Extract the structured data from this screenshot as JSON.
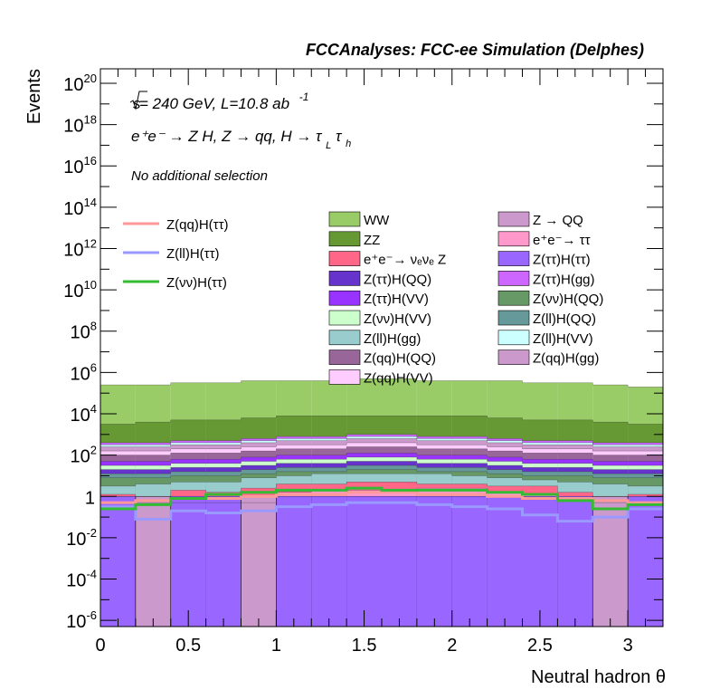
{
  "chart_data": {
    "type": "area",
    "title": "FCCAnalyses: FCC-ee Simulation (Delphes)",
    "xlabel": "Neutral hadron θ",
    "ylabel": "Events",
    "xlim": [
      0,
      3.2
    ],
    "ylog": true,
    "ylim_exp": [
      -6.3,
      20.7
    ],
    "x_ticks": [
      "0",
      "0.5",
      "1",
      "1.5",
      "2",
      "2.5",
      "3"
    ],
    "x_tick_values": [
      0,
      0.5,
      1,
      1.5,
      2,
      2.5,
      3
    ],
    "y_ticks": [
      {
        "base": "10",
        "exp": "20",
        "e": 20
      },
      {
        "base": "10",
        "exp": "18",
        "e": 18
      },
      {
        "base": "10",
        "exp": "16",
        "e": 16
      },
      {
        "base": "10",
        "exp": "14",
        "e": 14
      },
      {
        "base": "10",
        "exp": "12",
        "e": 12
      },
      {
        "base": "10",
        "exp": "10",
        "e": 10
      },
      {
        "base": "10",
        "exp": "8",
        "e": 8
      },
      {
        "base": "10",
        "exp": "6",
        "e": 6
      },
      {
        "base": "10",
        "exp": "4",
        "e": 4
      },
      {
        "base": "10",
        "exp": "2",
        "e": 2
      },
      {
        "base": "1",
        "exp": "",
        "e": 0
      },
      {
        "base": "10",
        "exp": "-2",
        "e": -2
      },
      {
        "base": "10",
        "exp": "-4",
        "e": -4
      },
      {
        "base": "10",
        "exp": "-6",
        "e": -6
      }
    ],
    "bin_edges": [
      0,
      0.2,
      0.4,
      0.6,
      0.8,
      1.0,
      1.2,
      1.4,
      1.6,
      1.8,
      2.0,
      2.2,
      2.4,
      2.6,
      2.8,
      3.0,
      3.2
    ],
    "stack_bottom_to_top": [
      {
        "name": "Z(ττ)H(ττ)",
        "color": "#9966ff",
        "log10": [
          0.0,
          0.0,
          0.0,
          0.0,
          0.0,
          0.0,
          0.0,
          0.0,
          0.0,
          0.0,
          0.0,
          0.0,
          0.0,
          0.0,
          0.0,
          0.0
        ]
      },
      {
        "name": "Z → QQ",
        "color": "#cc99cc",
        "log10": [
          0.0,
          -6.5,
          0.0,
          0.0,
          -6.5,
          0.0,
          0.0,
          0.0,
          0.0,
          0.0,
          0.0,
          0.0,
          0.0,
          0.0,
          -6.5,
          0.0
        ]
      },
      {
        "name": "e+e- → ττ",
        "color": "#ff99cc",
        "log10": [
          0.0,
          -0.3,
          -0.3,
          -0.3,
          -0.3,
          0.2,
          0.3,
          0.3,
          0.3,
          0.4,
          0.4,
          0.2,
          0.1,
          -0.1,
          -0.3,
          0.0
        ]
      },
      {
        "name": "e+e- → νeνe Z",
        "color": "#ff6688",
        "log10": [
          0.1,
          0.0,
          0.3,
          0.2,
          0.4,
          0.6,
          0.6,
          0.7,
          0.7,
          0.6,
          0.6,
          0.5,
          0.5,
          0.2,
          0.0,
          0.1
        ]
      },
      {
        "name": "Z(ll)H(gg)",
        "color": "#99cccc",
        "log10": [
          0.5,
          0.6,
          0.7,
          0.7,
          0.9,
          1.0,
          1.1,
          1.1,
          1.1,
          1.1,
          1.0,
          0.9,
          0.8,
          0.7,
          0.6,
          0.5
        ]
      },
      {
        "name": "Z(νν)H(QQ)",
        "color": "#669966",
        "log10": [
          0.9,
          0.9,
          1.0,
          1.0,
          1.1,
          1.2,
          1.2,
          1.3,
          1.3,
          1.2,
          1.2,
          1.1,
          1.0,
          1.0,
          0.9,
          0.9
        ]
      },
      {
        "name": "Z(ll)H(QQ)",
        "color": "#669999",
        "log10": [
          1.1,
          1.1,
          1.2,
          1.2,
          1.3,
          1.4,
          1.4,
          1.5,
          1.5,
          1.4,
          1.4,
          1.3,
          1.2,
          1.2,
          1.1,
          1.1
        ]
      },
      {
        "name": "Z(ττ)H(QQ)",
        "color": "#6633cc",
        "log10": [
          1.3,
          1.3,
          1.4,
          1.4,
          1.5,
          1.6,
          1.6,
          1.7,
          1.7,
          1.6,
          1.6,
          1.5,
          1.4,
          1.4,
          1.3,
          1.3
        ]
      },
      {
        "name": "Z(νν)H(VV)",
        "color": "#ccffcc",
        "log10": [
          1.5,
          1.5,
          1.6,
          1.6,
          1.7,
          1.8,
          1.8,
          1.9,
          1.9,
          1.8,
          1.8,
          1.7,
          1.6,
          1.6,
          1.5,
          1.5
        ]
      },
      {
        "name": "Z(ττ)H(VV)",
        "color": "#9933ff",
        "log10": [
          1.7,
          1.7,
          1.8,
          1.8,
          1.9,
          2.0,
          2.0,
          2.1,
          2.1,
          2.0,
          2.0,
          1.9,
          1.8,
          1.8,
          1.7,
          1.7
        ]
      },
      {
        "name": "Z(qq)H(QQ)",
        "color": "#996699",
        "log10": [
          2.0,
          2.0,
          2.1,
          2.1,
          2.2,
          2.3,
          2.3,
          2.4,
          2.4,
          2.3,
          2.3,
          2.2,
          2.1,
          2.1,
          2.0,
          2.0
        ]
      },
      {
        "name": "Z(qq)H(VV)",
        "color": "#ffccff",
        "log10": [
          2.2,
          2.2,
          2.3,
          2.3,
          2.4,
          2.5,
          2.5,
          2.6,
          2.6,
          2.5,
          2.5,
          2.4,
          2.3,
          2.3,
          2.2,
          2.2
        ]
      },
      {
        "name": "Z(qq)H(gg)",
        "color": "#cc99cc",
        "log10": [
          2.4,
          2.4,
          2.5,
          2.5,
          2.6,
          2.7,
          2.7,
          2.8,
          2.8,
          2.7,
          2.7,
          2.6,
          2.5,
          2.5,
          2.4,
          2.4
        ]
      },
      {
        "name": "Z(ll)H(VV)",
        "color": "#ccffff",
        "log10": [
          2.5,
          2.5,
          2.6,
          2.6,
          2.7,
          2.8,
          2.8,
          2.9,
          2.9,
          2.8,
          2.8,
          2.7,
          2.6,
          2.6,
          2.5,
          2.5
        ]
      },
      {
        "name": "Z(ττ)H(gg)",
        "color": "#cc66ff",
        "log10": [
          2.6,
          2.6,
          2.7,
          2.7,
          2.8,
          2.9,
          2.9,
          3.0,
          3.0,
          2.9,
          2.9,
          2.8,
          2.7,
          2.7,
          2.6,
          2.6
        ]
      },
      {
        "name": "ZZ",
        "color": "#669933",
        "log10": [
          3.5,
          3.6,
          3.7,
          3.7,
          3.8,
          3.9,
          3.9,
          3.9,
          3.9,
          3.9,
          3.9,
          3.8,
          3.7,
          3.7,
          3.6,
          3.5
        ]
      },
      {
        "name": "WW",
        "color": "#99cc66",
        "log10": [
          5.4,
          5.4,
          5.5,
          5.5,
          5.6,
          5.6,
          5.6,
          5.7,
          5.7,
          5.6,
          5.6,
          5.6,
          5.5,
          5.5,
          5.4,
          5.3
        ]
      }
    ],
    "signal_lines": [
      {
        "name": "Z(qq)H(ττ)",
        "color": "#ff9999",
        "log10": [
          -0.3,
          -0.2,
          -0.1,
          -0.1,
          0.0,
          0.1,
          0.1,
          0.2,
          0.2,
          0.1,
          0.1,
          0.0,
          -0.1,
          -0.1,
          -0.2,
          -0.3
        ]
      },
      {
        "name": "Z(ll)H(ττ)",
        "color": "#9999ff",
        "log10": [
          -0.5,
          -1.1,
          -0.7,
          -0.8,
          -0.7,
          -0.5,
          -0.4,
          -0.3,
          -0.3,
          -0.4,
          -0.5,
          -0.6,
          -0.9,
          -1.2,
          -1.0,
          -0.6
        ]
      },
      {
        "name": "Z(νν)H(ττ)",
        "color": "#33bb33",
        "log10": [
          -0.6,
          -0.4,
          -0.1,
          0.1,
          0.2,
          0.3,
          0.3,
          0.4,
          0.3,
          0.3,
          0.3,
          0.2,
          0.1,
          -0.2,
          -0.6,
          -0.4
        ]
      }
    ],
    "annotations": {
      "sqrt_symbol": "√s",
      "energy_text": " = 240 GeV, L=10.8 ab",
      "lumi_exp": "-1",
      "process_text": "e⁺e⁻ → Z H, Z → qq, H → τ",
      "tau_sub1": "L",
      "tau_mid": "τ",
      "tau_sub2": "h",
      "selection_text": "No additional selection"
    },
    "legend_lines": [
      {
        "label": "Z(qq)H(ττ)",
        "color": "#ff9999"
      },
      {
        "label": "Z(ll)H(ττ)",
        "color": "#9999ff"
      },
      {
        "label": "Z(νν)H(ττ)",
        "color": "#33bb33"
      }
    ],
    "legend_boxes": [
      {
        "label": "WW",
        "color": "#99cc66"
      },
      {
        "label": "Z → QQ",
        "color": "#cc99cc"
      },
      {
        "label": "ZZ",
        "color": "#669933"
      },
      {
        "label": "e⁺e⁻→ ττ",
        "color": "#ff99cc"
      },
      {
        "label": "e⁺e⁻→ νₑνₑ Z",
        "color": "#ff6688"
      },
      {
        "label": "Z(ττ)H(ττ)",
        "color": "#9966ff"
      },
      {
        "label": "Z(ττ)H(QQ)",
        "color": "#6633cc"
      },
      {
        "label": "Z(ττ)H(gg)",
        "color": "#cc66ff"
      },
      {
        "label": "Z(ττ)H(VV)",
        "color": "#9933ff"
      },
      {
        "label": "Z(νν)H(QQ)",
        "color": "#669966"
      },
      {
        "label": "Z(νν)H(VV)",
        "color": "#ccffcc"
      },
      {
        "label": "Z(ll)H(QQ)",
        "color": "#669999"
      },
      {
        "label": "Z(ll)H(gg)",
        "color": "#99cccc"
      },
      {
        "label": "Z(ll)H(VV)",
        "color": "#ccffff"
      },
      {
        "label": "Z(qq)H(QQ)",
        "color": "#996699"
      },
      {
        "label": "Z(qq)H(gg)",
        "color": "#cc99cc"
      },
      {
        "label": "Z(qq)H(VV)",
        "color": "#ffccff"
      }
    ]
  }
}
